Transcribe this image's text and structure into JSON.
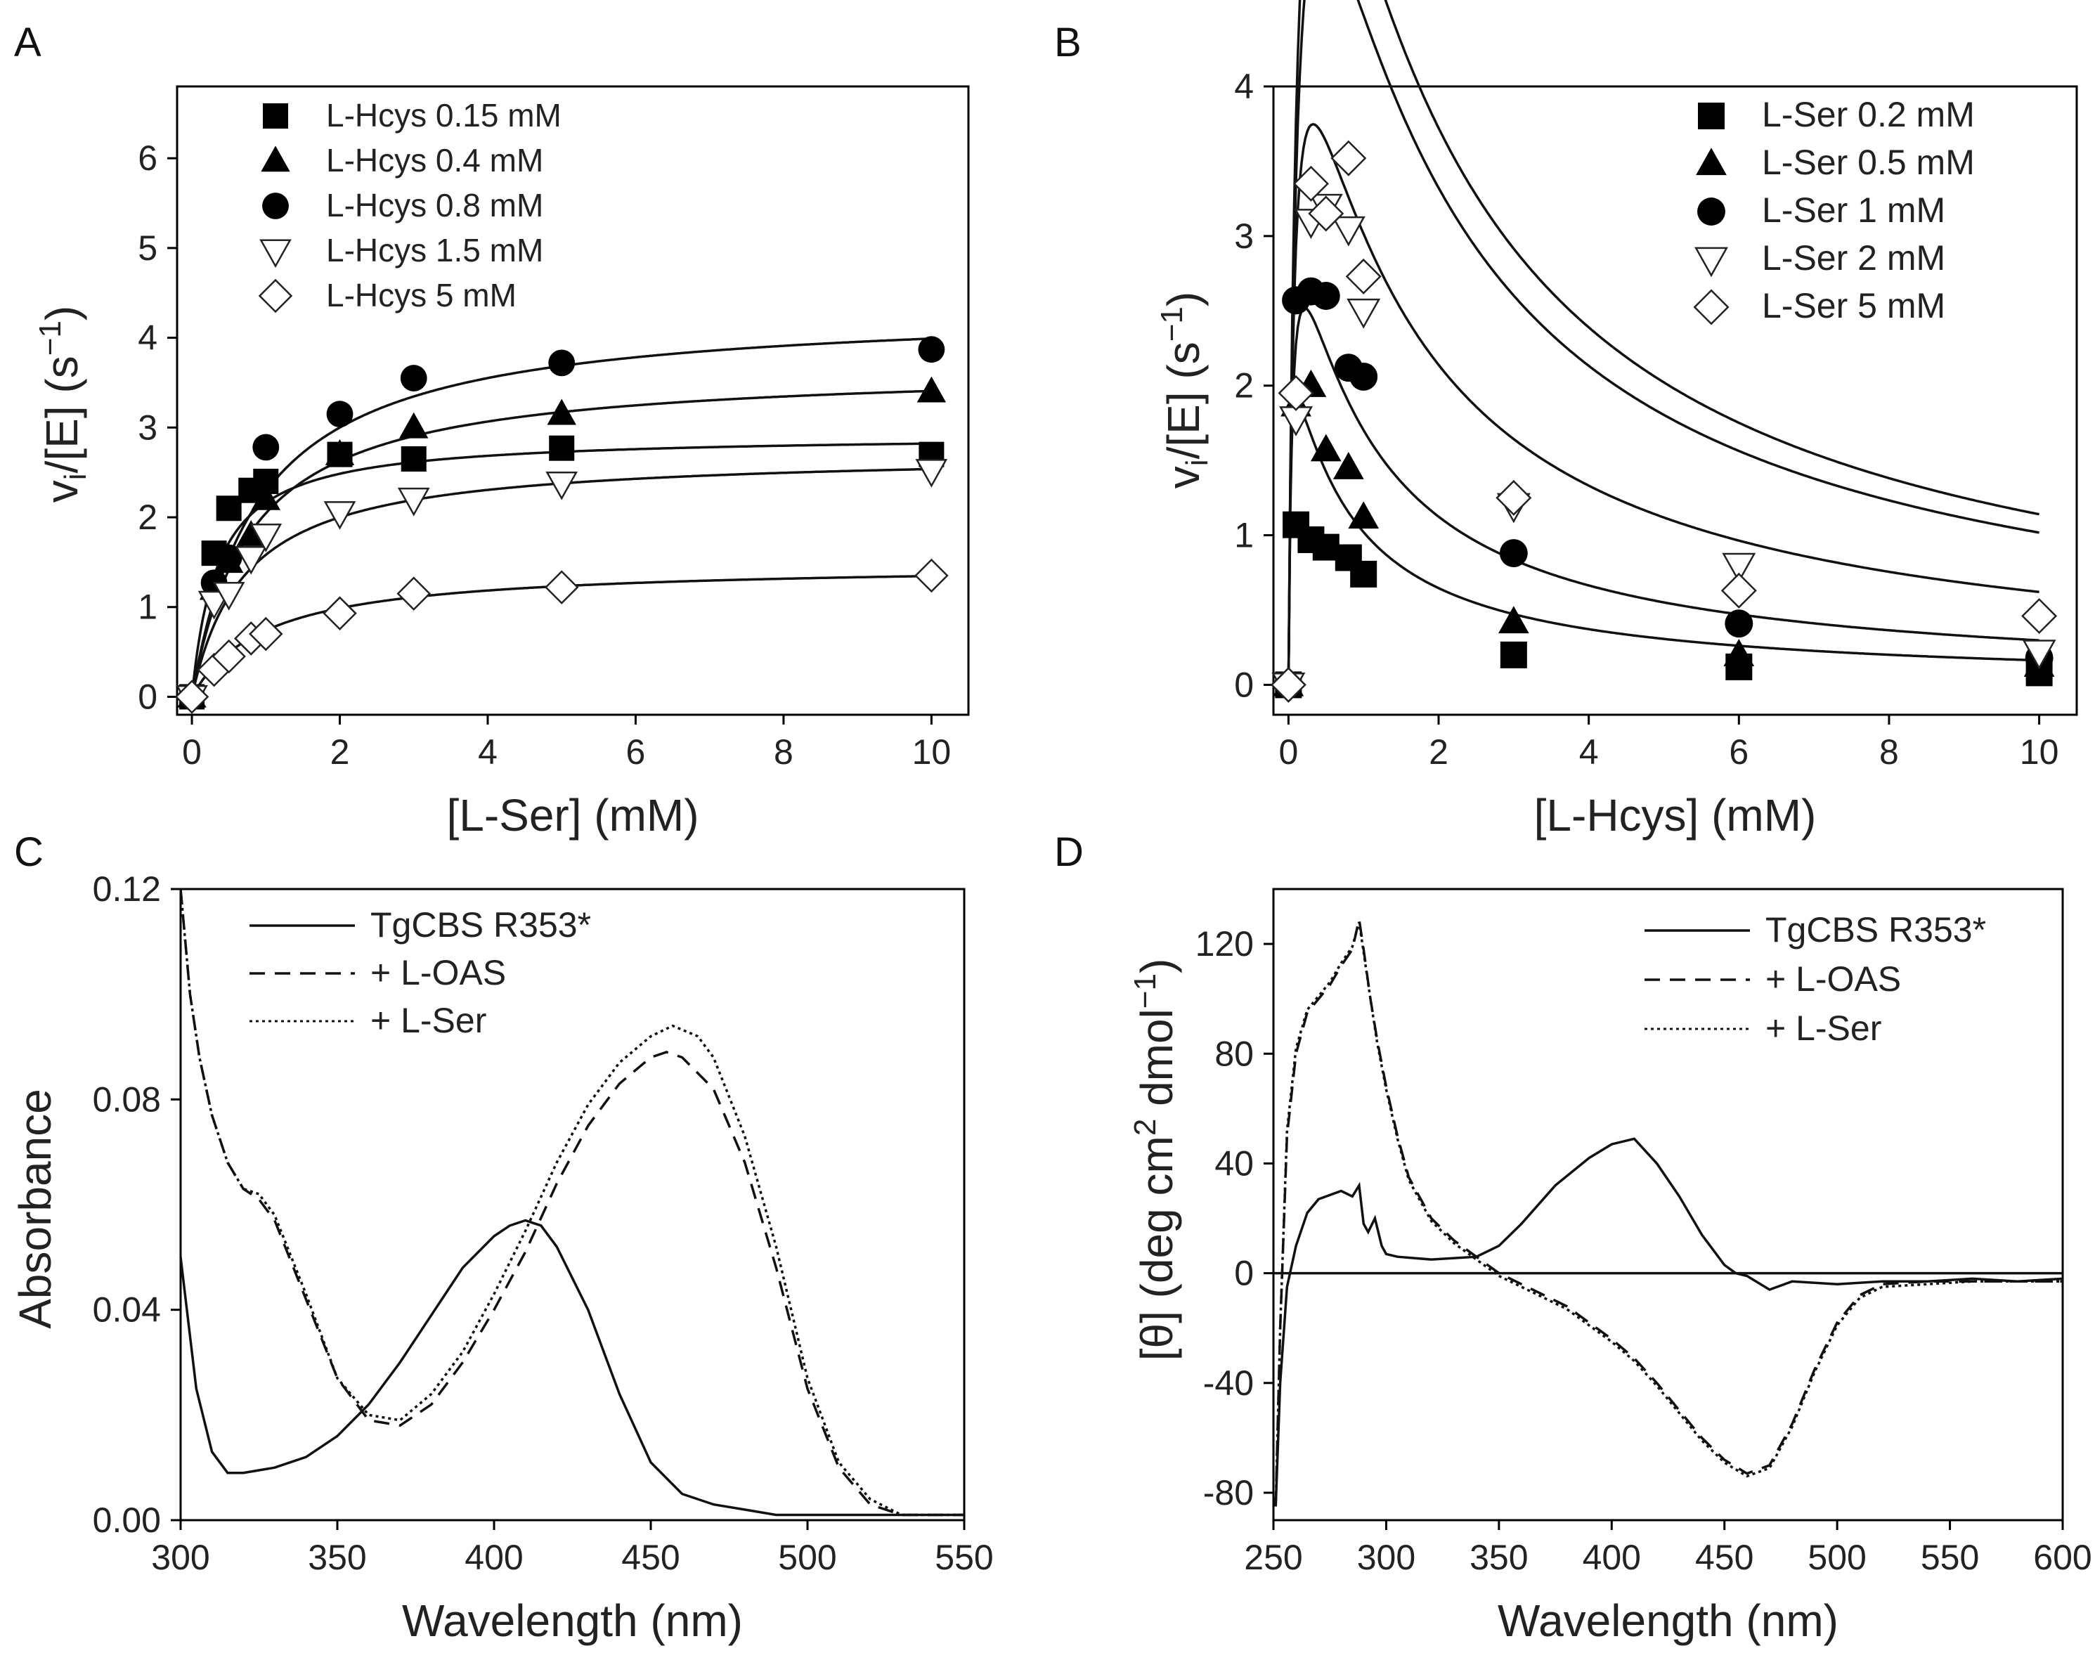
{
  "chart_data": [
    {
      "panel": "A",
      "type": "scatter",
      "xlabel": "[L-Ser] (mM)",
      "ylabel": "vi/[E] (s−1)",
      "xlim": [
        -0.2,
        10.5
      ],
      "ylim": [
        -0.2,
        6.8
      ],
      "xticks": [
        0,
        2,
        4,
        6,
        8,
        10
      ],
      "yticks": [
        0,
        1,
        2,
        3,
        4,
        5,
        6
      ],
      "series": [
        {
          "name": "L-Hcys 0.15 mM",
          "marker": "square",
          "x": [
            0,
            0.3,
            0.5,
            0.8,
            1,
            2,
            3,
            5,
            10
          ],
          "y": [
            0,
            1.6,
            2.1,
            2.3,
            2.4,
            2.7,
            2.65,
            2.77,
            2.7
          ],
          "fit": {
            "vmax": 2.92,
            "km": 0.35
          }
        },
        {
          "name": "L-Hcys 0.4 mM",
          "marker": "triangle-up",
          "x": [
            0,
            0.3,
            0.5,
            0.8,
            1,
            2,
            3,
            5,
            10
          ],
          "y": [
            0,
            1.2,
            1.5,
            1.8,
            2.2,
            2.7,
            3.0,
            3.15,
            3.4
          ],
          "fit": {
            "vmax": 3.68,
            "km": 0.8
          }
        },
        {
          "name": "L-Hcys 0.8 mM",
          "marker": "circle",
          "x": [
            0,
            0.3,
            0.5,
            1,
            2,
            3,
            5,
            10
          ],
          "y": [
            0,
            1.27,
            1.55,
            2.78,
            3.15,
            3.55,
            3.72,
            3.87
          ],
          "fit": {
            "vmax": 4.35,
            "km": 0.9
          }
        },
        {
          "name": "L-Hcys 1.5 mM",
          "marker": "triangle-down",
          "x": [
            0,
            0.3,
            0.5,
            0.8,
            1,
            2,
            3,
            5,
            10
          ],
          "y": [
            0,
            1.05,
            1.15,
            1.55,
            1.8,
            2.05,
            2.2,
            2.38,
            2.52
          ],
          "fit": {
            "vmax": 2.72,
            "km": 0.72
          }
        },
        {
          "name": "L-Hcys 5 mM",
          "marker": "diamond",
          "x": [
            0,
            0.3,
            0.5,
            0.8,
            1,
            2,
            3,
            5,
            10
          ],
          "y": [
            0,
            0.3,
            0.45,
            0.65,
            0.7,
            0.93,
            1.15,
            1.22,
            1.35
          ],
          "fit": {
            "vmax": 1.48,
            "km": 1.0
          }
        }
      ]
    },
    {
      "panel": "B",
      "type": "scatter",
      "xlabel": "[L-Hcys] (mM)",
      "ylabel": "vi/[E] (s−1)",
      "xlim": [
        -0.2,
        10.5
      ],
      "ylim": [
        -0.2,
        4.0
      ],
      "xticks": [
        0,
        2,
        4,
        6,
        8,
        10
      ],
      "yticks": [
        0,
        1,
        2,
        3,
        4
      ],
      "series": [
        {
          "name": "L-Ser 0.2 mM",
          "marker": "square",
          "x": [
            0,
            0.1,
            0.3,
            0.5,
            0.8,
            1,
            3,
            6,
            10
          ],
          "y": [
            0,
            1.07,
            0.97,
            0.92,
            0.85,
            0.74,
            0.2,
            0.12,
            0.08
          ],
          "fit": {
            "vmax": 2.5,
            "km": 0.02,
            "ki": 0.7
          }
        },
        {
          "name": "L-Ser 0.5 mM",
          "marker": "triangle-up",
          "x": [
            0,
            0.1,
            0.3,
            0.5,
            0.8,
            1,
            3,
            6,
            10
          ],
          "y": [
            0,
            1.87,
            2.0,
            1.57,
            1.45,
            1.12,
            0.42,
            0.2,
            0.13
          ],
          "fit": {
            "vmax": 3.8,
            "km": 0.055,
            "ki": 0.85
          }
        },
        {
          "name": "L-Ser 1 mM",
          "marker": "circle",
          "x": [
            0,
            0.1,
            0.3,
            0.5,
            0.8,
            1,
            3,
            6,
            10
          ],
          "y": [
            0,
            2.57,
            2.63,
            2.6,
            2.12,
            2.06,
            0.88,
            0.41,
            0.18
          ],
          "fit": {
            "vmax": 5.8,
            "km": 0.09,
            "ki": 1.2
          }
        },
        {
          "name": "L-Ser 2 mM",
          "marker": "triangle-down",
          "x": [
            0,
            0.1,
            0.3,
            0.5,
            0.8,
            1,
            3,
            6,
            10
          ],
          "y": [
            0,
            1.78,
            3.1,
            3.2,
            3.05,
            2.5,
            1.2,
            0.8,
            0.22
          ],
          "fit": {
            "vmax": 8.3,
            "km": 0.14,
            "ki": 1.4
          }
        },
        {
          "name": "L-Ser 5 mM",
          "marker": "diamond",
          "x": [
            0,
            0.1,
            0.3,
            0.5,
            0.8,
            1,
            3,
            6,
            10
          ],
          "y": [
            0,
            1.95,
            3.35,
            3.15,
            3.52,
            2.73,
            1.25,
            0.63,
            0.46
          ],
          "fit": {
            "vmax": 9.3,
            "km": 0.14,
            "ki": 1.4
          }
        }
      ]
    },
    {
      "panel": "C",
      "type": "line",
      "xlabel": "Wavelength (nm)",
      "ylabel": "Absorbance",
      "xlim": [
        300,
        550
      ],
      "ylim": [
        0,
        0.12
      ],
      "xticks": [
        300,
        350,
        400,
        450,
        500,
        550
      ],
      "yticks": [
        "0.00",
        "0.04",
        "0.08",
        "0.12"
      ],
      "series": [
        {
          "name": "TgCBS R353*",
          "style": "solid",
          "x": [
            300,
            305,
            310,
            315,
            320,
            330,
            340,
            350,
            360,
            370,
            380,
            390,
            400,
            405,
            410,
            415,
            420,
            430,
            440,
            450,
            460,
            470,
            480,
            490,
            500,
            520,
            550
          ],
          "y": [
            0.05,
            0.025,
            0.013,
            0.009,
            0.009,
            0.01,
            0.012,
            0.016,
            0.022,
            0.03,
            0.039,
            0.048,
            0.054,
            0.056,
            0.057,
            0.056,
            0.052,
            0.04,
            0.024,
            0.011,
            0.005,
            0.003,
            0.002,
            0.001,
            0.001,
            0.001,
            0.001
          ]
        },
        {
          "name": "+ L-OAS",
          "style": "dashed",
          "x": [
            300,
            303,
            306,
            310,
            315,
            320,
            325,
            330,
            340,
            350,
            360,
            370,
            380,
            390,
            400,
            410,
            420,
            430,
            440,
            450,
            455,
            460,
            470,
            480,
            490,
            500,
            510,
            520,
            530,
            540,
            550
          ],
          "y": [
            0.12,
            0.1,
            0.088,
            0.077,
            0.068,
            0.063,
            0.061,
            0.057,
            0.042,
            0.027,
            0.019,
            0.018,
            0.022,
            0.03,
            0.04,
            0.051,
            0.064,
            0.075,
            0.083,
            0.088,
            0.089,
            0.088,
            0.082,
            0.068,
            0.048,
            0.025,
            0.01,
            0.003,
            0.001,
            0.001,
            0.001
          ]
        },
        {
          "name": "+ L-Ser",
          "style": "dotted",
          "x": [
            300,
            303,
            306,
            310,
            315,
            320,
            325,
            330,
            340,
            350,
            360,
            370,
            380,
            390,
            400,
            410,
            420,
            430,
            440,
            450,
            457,
            465,
            470,
            480,
            490,
            500,
            510,
            520,
            530,
            540,
            550
          ],
          "y": [
            0.12,
            0.1,
            0.088,
            0.077,
            0.068,
            0.063,
            0.062,
            0.058,
            0.043,
            0.027,
            0.02,
            0.019,
            0.024,
            0.032,
            0.043,
            0.055,
            0.068,
            0.079,
            0.087,
            0.092,
            0.094,
            0.092,
            0.088,
            0.073,
            0.052,
            0.027,
            0.011,
            0.004,
            0.001,
            0.001,
            0.001
          ]
        }
      ],
      "legend": [
        "TgCBS R353*",
        "+ L-OAS",
        "+ L-Ser"
      ]
    },
    {
      "panel": "D",
      "type": "line",
      "xlabel": "Wavelength (nm)",
      "ylabel": "[θ] (deg cm2 dmol−1)",
      "xlim": [
        250,
        600
      ],
      "ylim": [
        -90,
        140
      ],
      "xticks": [
        250,
        300,
        350,
        400,
        450,
        500,
        550,
        600
      ],
      "yticks": [
        -80,
        -40,
        0,
        40,
        80,
        120
      ],
      "series": [
        {
          "name": "TgCBS R353*",
          "style": "solid",
          "x": [
            251,
            253,
            256,
            260,
            265,
            270,
            280,
            285,
            288,
            290,
            292,
            295,
            298,
            300,
            305,
            320,
            340,
            350,
            360,
            375,
            390,
            400,
            410,
            420,
            430,
            440,
            450,
            455,
            460,
            470,
            480,
            500,
            520,
            540,
            560,
            580,
            600
          ],
          "y": [
            -85,
            -40,
            -5,
            10,
            22,
            27,
            30,
            28,
            32,
            18,
            15,
            20,
            10,
            7,
            6,
            5,
            6,
            10,
            18,
            32,
            42,
            47,
            49,
            40,
            28,
            14,
            3,
            0,
            -1,
            -6,
            -3,
            -4,
            -3,
            -3,
            -2,
            -3,
            -2
          ]
        },
        {
          "name": "+ L-OAS",
          "style": "dashed",
          "x": [
            251,
            253,
            256,
            260,
            265,
            270,
            275,
            280,
            285,
            288,
            290,
            293,
            296,
            300,
            305,
            310,
            320,
            330,
            340,
            350,
            360,
            370,
            380,
            390,
            400,
            410,
            420,
            430,
            440,
            450,
            460,
            470,
            480,
            490,
            500,
            510,
            520,
            540,
            560,
            580,
            600
          ],
          "y": [
            -85,
            -20,
            50,
            80,
            95,
            100,
            105,
            112,
            118,
            129,
            118,
            100,
            85,
            68,
            50,
            35,
            20,
            12,
            6,
            0,
            -4,
            -8,
            -12,
            -18,
            -24,
            -31,
            -40,
            -50,
            -60,
            -68,
            -73,
            -70,
            -55,
            -35,
            -18,
            -8,
            -4,
            -3,
            -3,
            -3,
            -3
          ]
        },
        {
          "name": "+ L-Ser",
          "style": "dotted",
          "x": [
            251,
            253,
            256,
            260,
            265,
            270,
            275,
            280,
            285,
            288,
            290,
            293,
            296,
            300,
            305,
            310,
            320,
            330,
            340,
            350,
            360,
            370,
            380,
            390,
            400,
            410,
            420,
            430,
            440,
            450,
            460,
            470,
            480,
            490,
            500,
            510,
            520,
            540,
            560,
            580,
            600
          ],
          "y": [
            -85,
            -20,
            52,
            82,
            96,
            101,
            106,
            113,
            119,
            128,
            117,
            100,
            84,
            67,
            49,
            34,
            19,
            11,
            5,
            -1,
            -5,
            -9,
            -13,
            -19,
            -25,
            -32,
            -41,
            -51,
            -61,
            -69,
            -74,
            -71,
            -56,
            -36,
            -19,
            -9,
            -5,
            -4,
            -3,
            -3,
            -3
          ]
        },
        {
          "name": "baseline",
          "style": "solid",
          "x": [
            250,
            600
          ],
          "y": [
            0,
            0
          ]
        }
      ],
      "legend": [
        "TgCBS R353*",
        "+ L-OAS",
        "+ L-Ser"
      ]
    }
  ],
  "panel_labels": [
    "A",
    "B",
    "C",
    "D"
  ],
  "ylabel_parts": {
    "v": "v",
    "i": "i",
    "rest": "/[E] (s",
    "sup": "−1",
    "close": ")"
  },
  "dlabel_parts": {
    "a": "[θ] (deg cm",
    "sup1": "2",
    "b": " dmol",
    "sup2": "−1",
    "c": ")"
  }
}
